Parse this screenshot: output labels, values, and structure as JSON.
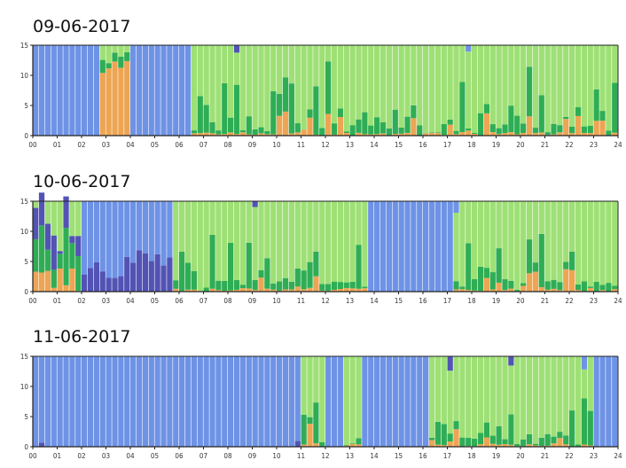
{
  "colors": {
    "blue": "#6e93e6",
    "green": "#9ee075",
    "dark_green": "#2fad55",
    "orange": "#eda553",
    "purple": "#5253b4",
    "frame": "#222222"
  },
  "chart_data": [
    {
      "type": "bar",
      "title": "09-06-2017",
      "stacked": true,
      "x_unit": "hour",
      "xlim": [
        0,
        24
      ],
      "ylim": [
        0,
        15
      ],
      "y_ticks": [
        "0",
        "5",
        "10",
        "15"
      ],
      "x_ticks": [
        "00",
        "01",
        "02",
        "03",
        "04",
        "05",
        "06",
        "07",
        "08",
        "09",
        "10",
        "11",
        "12",
        "13",
        "14",
        "15",
        "16",
        "17",
        "18",
        "19",
        "20",
        "21",
        "22",
        "23",
        "24"
      ],
      "grid": false,
      "legend": "none",
      "segments": [
        {
          "start": 0.0,
          "end": 2.8,
          "dominant": "blue"
        },
        {
          "start": 2.8,
          "end": 4.0,
          "dominant": "orange",
          "level": 13,
          "minor": [
            "dark_green",
            "green"
          ]
        },
        {
          "start": 4.0,
          "end": 6.6,
          "dominant": "blue"
        },
        {
          "start": 6.6,
          "end": 24.0,
          "dominant": "green",
          "minor": [
            "dark_green",
            "orange",
            "purple",
            "blue"
          ]
        }
      ]
    },
    {
      "type": "bar",
      "title": "10-06-2017",
      "stacked": true,
      "x_unit": "hour",
      "xlim": [
        0,
        24
      ],
      "ylim": [
        0,
        15
      ],
      "y_ticks": [
        "0",
        "5",
        "10",
        "15"
      ],
      "x_ticks": [
        "00",
        "01",
        "02",
        "03",
        "04",
        "05",
        "06",
        "07",
        "08",
        "09",
        "10",
        "11",
        "12",
        "13",
        "14",
        "15",
        "16",
        "17",
        "18",
        "19",
        "20",
        "21",
        "22",
        "23",
        "24"
      ],
      "grid": false,
      "legend": "none",
      "segments": [
        {
          "start": 0.0,
          "end": 2.0,
          "dominant": "mixed",
          "minor": [
            "dark_green",
            "purple",
            "orange",
            "green",
            "blue"
          ]
        },
        {
          "start": 2.0,
          "end": 5.8,
          "dominant": "blue",
          "minor": [
            "purple"
          ]
        },
        {
          "start": 5.8,
          "end": 13.8,
          "dominant": "green",
          "minor": [
            "dark_green",
            "orange",
            "blue"
          ]
        },
        {
          "start": 13.8,
          "end": 17.2,
          "dominant": "blue"
        },
        {
          "start": 17.2,
          "end": 24.0,
          "dominant": "green",
          "minor": [
            "dark_green",
            "orange",
            "blue"
          ]
        }
      ]
    },
    {
      "type": "bar",
      "title": "11-06-2017",
      "stacked": true,
      "x_unit": "hour",
      "xlim": [
        0,
        24
      ],
      "ylim": [
        0,
        15
      ],
      "y_ticks": [
        "0",
        "5",
        "10",
        "15"
      ],
      "x_ticks": [
        "00",
        "01",
        "02",
        "03",
        "04",
        "05",
        "06",
        "07",
        "08",
        "09",
        "10",
        "11",
        "12",
        "13",
        "14",
        "15",
        "16",
        "17",
        "18",
        "19",
        "20",
        "21",
        "22",
        "23",
        "24"
      ],
      "grid": false,
      "legend": "none",
      "segments": [
        {
          "start": 0.0,
          "end": 10.9,
          "dominant": "blue",
          "minor": [
            "purple"
          ]
        },
        {
          "start": 10.9,
          "end": 11.9,
          "dominant": "green",
          "minor": [
            "dark_green",
            "orange"
          ]
        },
        {
          "start": 11.9,
          "end": 12.7,
          "dominant": "blue"
        },
        {
          "start": 12.7,
          "end": 13.6,
          "dominant": "green",
          "minor": [
            "dark_green",
            "orange",
            "purple"
          ]
        },
        {
          "start": 13.6,
          "end": 16.3,
          "dominant": "blue"
        },
        {
          "start": 16.3,
          "end": 23.1,
          "dominant": "green",
          "minor": [
            "dark_green",
            "orange",
            "purple"
          ]
        },
        {
          "start": 23.1,
          "end": 24.0,
          "dominant": "blue"
        }
      ]
    }
  ]
}
